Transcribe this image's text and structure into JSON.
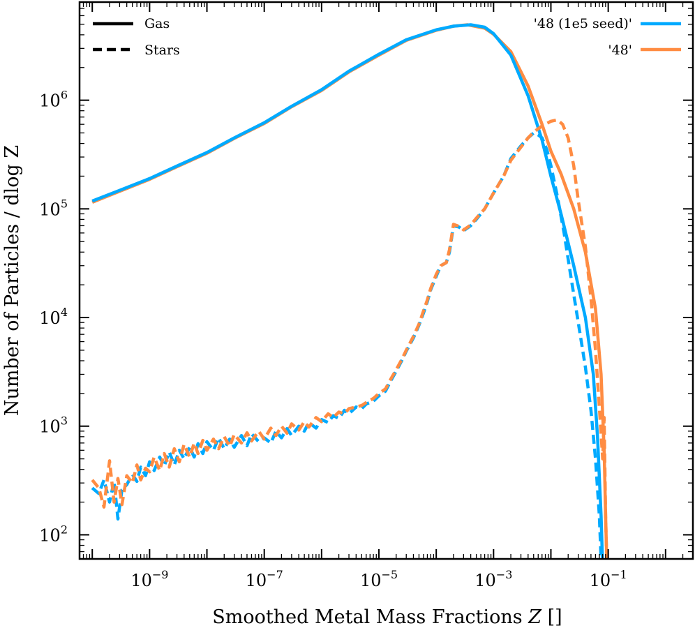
{
  "chart_data": {
    "type": "line",
    "title": "",
    "xlabel": "Smoothed Metal Mass Fractions",
    "xlabel_symbol": "Z",
    "xlabel_unit": "[]",
    "ylabel": "Number of Particles / dlog Z",
    "xscale": "log",
    "yscale": "log",
    "xlim": [
      6e-11,
      3.0
    ],
    "ylim": [
      60,
      8000000
    ],
    "x_ticks": [
      {
        "value": 1e-09,
        "base": "10",
        "exp": "−9"
      },
      {
        "value": 1e-07,
        "base": "10",
        "exp": "−7"
      },
      {
        "value": 1e-05,
        "base": "10",
        "exp": "−5"
      },
      {
        "value": 0.001,
        "base": "10",
        "exp": "−3"
      },
      {
        "value": 0.1,
        "base": "10",
        "exp": "−1"
      }
    ],
    "y_ticks": [
      {
        "value": 100,
        "base": "10",
        "exp": "2"
      },
      {
        "value": 1000,
        "base": "10",
        "exp": "3"
      },
      {
        "value": 10000,
        "base": "10",
        "exp": "4"
      },
      {
        "value": 100000,
        "base": "10",
        "exp": "5"
      },
      {
        "value": 1000000,
        "base": "10",
        "exp": "6"
      }
    ],
    "legend_styles": [
      {
        "label": "Gas",
        "dash": "solid"
      },
      {
        "label": "Stars",
        "dash": "dashed"
      }
    ],
    "legend_runs": [
      {
        "label": "'48 (1e5 seed)'",
        "color": "#00aaff"
      },
      {
        "label": "'48'",
        "color": "#ff8c42"
      }
    ],
    "series": [
      {
        "name": "'48 (1e5 seed)' Gas",
        "component": "Gas",
        "run": "'48 (1e5 seed)'",
        "color": "#00aaff",
        "dash": "solid",
        "points": [
          [
            1e-10,
            118000
          ],
          [
            3e-10,
            148000
          ],
          [
            1e-09,
            190000
          ],
          [
            3e-09,
            248000
          ],
          [
            1e-08,
            330000
          ],
          [
            3e-08,
            450000
          ],
          [
            1e-07,
            620000
          ],
          [
            3e-07,
            880000
          ],
          [
            1e-06,
            1250000
          ],
          [
            3e-06,
            1850000
          ],
          [
            1e-05,
            2650000
          ],
          [
            3e-05,
            3600000
          ],
          [
            0.0001,
            4450000
          ],
          [
            0.0002,
            4800000
          ],
          [
            0.0004,
            4950000
          ],
          [
            0.0007,
            4700000
          ],
          [
            0.001,
            4100000
          ],
          [
            0.002,
            2600000
          ],
          [
            0.004,
            1100000
          ],
          [
            0.007,
            430000
          ],
          [
            0.01,
            200000
          ],
          [
            0.015,
            90000
          ],
          [
            0.025,
            30000
          ],
          [
            0.04,
            10000
          ],
          [
            0.055,
            3000
          ],
          [
            0.065,
            800
          ],
          [
            0.075,
            150
          ],
          [
            0.08,
            50
          ]
        ]
      },
      {
        "name": "'48' Gas",
        "component": "Gas",
        "run": "'48'",
        "color": "#ff8c42",
        "dash": "solid",
        "points": [
          [
            1e-10,
            115000
          ],
          [
            3e-10,
            145000
          ],
          [
            1e-09,
            187000
          ],
          [
            3e-09,
            244000
          ],
          [
            1e-08,
            325000
          ],
          [
            3e-08,
            445000
          ],
          [
            1e-07,
            610000
          ],
          [
            3e-07,
            870000
          ],
          [
            1e-06,
            1230000
          ],
          [
            3e-06,
            1820000
          ],
          [
            1e-05,
            2600000
          ],
          [
            3e-05,
            3550000
          ],
          [
            0.0001,
            4400000
          ],
          [
            0.0002,
            4800000
          ],
          [
            0.00035,
            4950000
          ],
          [
            0.0007,
            4600000
          ],
          [
            0.001,
            4050000
          ],
          [
            0.002,
            2800000
          ],
          [
            0.004,
            1350000
          ],
          [
            0.007,
            600000
          ],
          [
            0.01,
            340000
          ],
          [
            0.015,
            210000
          ],
          [
            0.025,
            100000
          ],
          [
            0.04,
            40000
          ],
          [
            0.06,
            12000
          ],
          [
            0.075,
            3000
          ],
          [
            0.085,
            600
          ],
          [
            0.09,
            150
          ],
          [
            0.095,
            50
          ]
        ]
      },
      {
        "name": "'48 (1e5 seed)' Stars",
        "component": "Stars",
        "run": "'48 (1e5 seed)'",
        "color": "#00aaff",
        "dash": "dashed",
        "points": [
          [
            1e-10,
            270
          ],
          [
            1.3e-10,
            240
          ],
          [
            1.6e-10,
            320
          ],
          [
            2e-10,
            200
          ],
          [
            2.4e-10,
            310
          ],
          [
            2.8e-10,
            140
          ],
          [
            3.3e-10,
            260
          ],
          [
            4e-10,
            290
          ],
          [
            5e-10,
            360
          ],
          [
            6e-10,
            310
          ],
          [
            7e-10,
            420
          ],
          [
            8.5e-10,
            350
          ],
          [
            1e-09,
            470
          ],
          [
            1.2e-09,
            390
          ],
          [
            1.5e-09,
            520
          ],
          [
            1.8e-09,
            430
          ],
          [
            2.2e-09,
            580
          ],
          [
            2.7e-09,
            440
          ],
          [
            3.3e-09,
            600
          ],
          [
            4e-09,
            500
          ],
          [
            5e-09,
            640
          ],
          [
            6e-09,
            520
          ],
          [
            7e-09,
            690
          ],
          [
            8.5e-09,
            560
          ],
          [
            1e-08,
            720
          ],
          [
            1.3e-08,
            600
          ],
          [
            1.6e-08,
            780
          ],
          [
            2e-08,
            620
          ],
          [
            2.5e-08,
            760
          ],
          [
            3e-08,
            640
          ],
          [
            4e-08,
            820
          ],
          [
            5e-08,
            660
          ],
          [
            6e-08,
            850
          ],
          [
            8e-08,
            720
          ],
          [
            1e-07,
            780
          ],
          [
            1.3e-07,
            700
          ],
          [
            1.6e-07,
            900
          ],
          [
            2e-07,
            780
          ],
          [
            2.5e-07,
            950
          ],
          [
            3e-07,
            820
          ],
          [
            4e-07,
            1000
          ],
          [
            5e-07,
            900
          ],
          [
            6e-07,
            1080
          ],
          [
            8e-07,
            960
          ],
          [
            1e-06,
            1150
          ],
          [
            1.3e-06,
            1080
          ],
          [
            1.6e-06,
            1250
          ],
          [
            2e-06,
            1180
          ],
          [
            2.5e-06,
            1400
          ],
          [
            3e-06,
            1300
          ],
          [
            4e-06,
            1500
          ],
          [
            5e-06,
            1450
          ],
          [
            6e-06,
            1600
          ],
          [
            8e-06,
            1700
          ],
          [
            1e-05,
            1900
          ],
          [
            1.3e-05,
            2100
          ],
          [
            1.6e-05,
            2600
          ],
          [
            2e-05,
            3200
          ],
          [
            2.5e-05,
            4000
          ],
          [
            3e-05,
            4900
          ],
          [
            4e-05,
            6500
          ],
          [
            5e-05,
            8500
          ],
          [
            6e-05,
            11000
          ],
          [
            7e-05,
            14000
          ],
          [
            8e-05,
            18000
          ],
          [
            0.0001,
            24000
          ],
          [
            0.00012,
            30000
          ],
          [
            0.00015,
            32000
          ],
          [
            0.00017,
            40000
          ],
          [
            0.0002,
            70000
          ],
          [
            0.00025,
            68000
          ],
          [
            0.0003,
            63000
          ],
          [
            0.0004,
            70000
          ],
          [
            0.0005,
            80000
          ],
          [
            0.0007,
            100000
          ],
          [
            0.001,
            140000
          ],
          [
            0.0015,
            200000
          ],
          [
            0.002,
            290000
          ],
          [
            0.003,
            380000
          ],
          [
            0.004,
            450000
          ],
          [
            0.005,
            500000
          ],
          [
            0.006,
            480000
          ],
          [
            0.007,
            450000
          ],
          [
            0.0085,
            350000
          ],
          [
            0.01,
            250000
          ],
          [
            0.013,
            130000
          ],
          [
            0.017,
            60000
          ],
          [
            0.022,
            25000
          ],
          [
            0.03,
            9000
          ],
          [
            0.04,
            3500
          ],
          [
            0.05,
            1400
          ],
          [
            0.06,
            500
          ],
          [
            0.07,
            150
          ],
          [
            0.075,
            60
          ]
        ]
      },
      {
        "name": "'48' Stars",
        "component": "Stars",
        "run": "'48'",
        "color": "#ff8c42",
        "dash": "dashed",
        "points": [
          [
            1e-10,
            320
          ],
          [
            1.3e-10,
            270
          ],
          [
            1.6e-10,
            180
          ],
          [
            2e-10,
            480
          ],
          [
            2.4e-10,
            200
          ],
          [
            2.8e-10,
            330
          ],
          [
            3.3e-10,
            190
          ],
          [
            4e-10,
            350
          ],
          [
            5e-10,
            300
          ],
          [
            6e-10,
            440
          ],
          [
            7e-10,
            320
          ],
          [
            8.5e-10,
            410
          ],
          [
            1e-09,
            380
          ],
          [
            1.2e-09,
            520
          ],
          [
            1.5e-09,
            390
          ],
          [
            1.8e-09,
            560
          ],
          [
            2.2e-09,
            420
          ],
          [
            2.7e-09,
            620
          ],
          [
            3.3e-09,
            470
          ],
          [
            4e-09,
            680
          ],
          [
            5e-09,
            520
          ],
          [
            6e-09,
            700
          ],
          [
            7e-09,
            560
          ],
          [
            8.5e-09,
            740
          ],
          [
            1e-08,
            600
          ],
          [
            1.3e-08,
            760
          ],
          [
            1.6e-08,
            620
          ],
          [
            2e-08,
            800
          ],
          [
            2.5e-08,
            650
          ],
          [
            3e-08,
            840
          ],
          [
            4e-08,
            700
          ],
          [
            5e-08,
            870
          ],
          [
            6e-08,
            730
          ],
          [
            8e-08,
            900
          ],
          [
            1e-07,
            760
          ],
          [
            1.3e-07,
            960
          ],
          [
            1.6e-07,
            820
          ],
          [
            2e-07,
            1000
          ],
          [
            2.5e-07,
            860
          ],
          [
            3e-07,
            1050
          ],
          [
            4e-07,
            920
          ],
          [
            5e-07,
            1100
          ],
          [
            6e-07,
            980
          ],
          [
            8e-07,
            1200
          ],
          [
            1e-06,
            1100
          ],
          [
            1.3e-06,
            1300
          ],
          [
            1.6e-06,
            1200
          ],
          [
            2e-06,
            1350
          ],
          [
            2.5e-06,
            1300
          ],
          [
            3e-06,
            1450
          ],
          [
            4e-06,
            1500
          ],
          [
            5e-06,
            1550
          ],
          [
            6e-06,
            1650
          ],
          [
            8e-06,
            1800
          ],
          [
            1e-05,
            2000
          ],
          [
            1.3e-05,
            2200
          ],
          [
            1.6e-05,
            2700
          ],
          [
            2e-05,
            3300
          ],
          [
            2.5e-05,
            4100
          ],
          [
            3e-05,
            5000
          ],
          [
            4e-05,
            6700
          ],
          [
            5e-05,
            8700
          ],
          [
            6e-05,
            11500
          ],
          [
            7e-05,
            14500
          ],
          [
            8e-05,
            18500
          ],
          [
            0.0001,
            25000
          ],
          [
            0.00012,
            30000
          ],
          [
            0.00015,
            32000
          ],
          [
            0.00017,
            42000
          ],
          [
            0.0002,
            72000
          ],
          [
            0.00025,
            69000
          ],
          [
            0.0003,
            64000
          ],
          [
            0.0004,
            71000
          ],
          [
            0.0005,
            82000
          ],
          [
            0.0007,
            100000
          ],
          [
            0.001,
            140000
          ],
          [
            0.0015,
            200000
          ],
          [
            0.002,
            280000
          ],
          [
            0.003,
            370000
          ],
          [
            0.004,
            450000
          ],
          [
            0.005,
            510000
          ],
          [
            0.007,
            580000
          ],
          [
            0.01,
            640000
          ],
          [
            0.013,
            660000
          ],
          [
            0.016,
            600000
          ],
          [
            0.02,
            450000
          ],
          [
            0.025,
            250000
          ],
          [
            0.03,
            120000
          ],
          [
            0.04,
            45000
          ],
          [
            0.05,
            15000
          ],
          [
            0.06,
            5000
          ],
          [
            0.07,
            1500
          ],
          [
            0.08,
            500
          ],
          [
            0.085,
            1200
          ],
          [
            0.09,
            150
          ],
          [
            0.095,
            50
          ]
        ]
      }
    ]
  }
}
